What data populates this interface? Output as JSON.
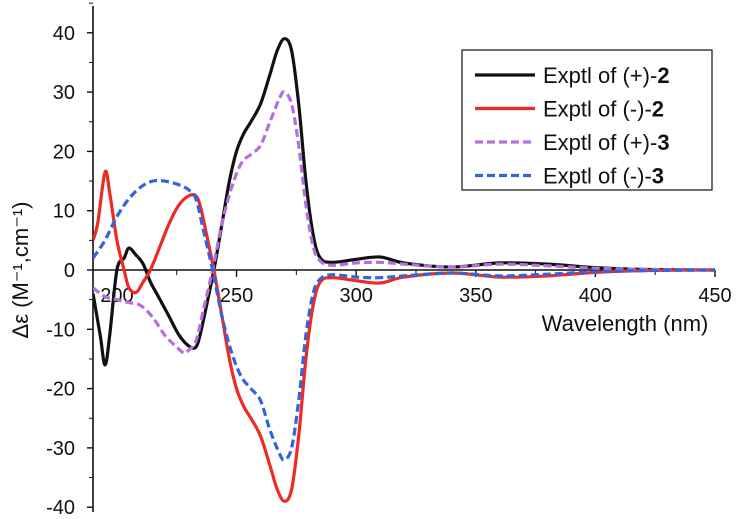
{
  "chart_data": {
    "type": "line",
    "xlabel": "Wavelength (nm)",
    "ylabel": "Δε (M⁻¹,cm⁻¹)",
    "xlim": [
      190,
      450
    ],
    "ylim": [
      -40,
      45
    ],
    "xticks": [
      200,
      250,
      300,
      350,
      400,
      450
    ],
    "xtick_labels": [
      "200",
      "250",
      "300",
      "350",
      "400",
      "450"
    ],
    "yticks": [
      -40,
      -30,
      -20,
      -10,
      0,
      10,
      20,
      30,
      40
    ],
    "ytick_labels": [
      "-40",
      "-30",
      "-20",
      "-10",
      "0",
      "10",
      "20",
      "30",
      "40"
    ],
    "grid": false,
    "legend_position": "top-right",
    "series": [
      {
        "name": "Exptl of (+)-2",
        "label_prefix": "Exptl of (+)-",
        "label_num": "2",
        "color": "#111111",
        "dash": "solid",
        "points": [
          [
            190,
            -4
          ],
          [
            193,
            -11
          ],
          [
            195,
            -16
          ],
          [
            197,
            -11
          ],
          [
            200,
            0
          ],
          [
            203,
            2
          ],
          [
            205,
            3.7
          ],
          [
            208,
            2.5
          ],
          [
            211,
            1
          ],
          [
            214,
            -2
          ],
          [
            218,
            -5
          ],
          [
            222,
            -8
          ],
          [
            226,
            -11
          ],
          [
            230,
            -12.8
          ],
          [
            233,
            -13
          ],
          [
            235,
            -10.5
          ],
          [
            238,
            -5
          ],
          [
            241,
            1
          ],
          [
            244,
            8
          ],
          [
            247,
            15
          ],
          [
            250,
            20
          ],
          [
            253,
            23
          ],
          [
            256,
            25
          ],
          [
            260,
            28
          ],
          [
            264,
            33
          ],
          [
            267,
            37
          ],
          [
            270,
            39
          ],
          [
            273,
            37
          ],
          [
            276,
            28
          ],
          [
            279,
            15
          ],
          [
            282,
            6
          ],
          [
            285,
            2
          ],
          [
            290,
            1.3
          ],
          [
            300,
            1.8
          ],
          [
            310,
            2.2
          ],
          [
            320,
            1.2
          ],
          [
            340,
            0.5
          ],
          [
            360,
            1.2
          ],
          [
            380,
            1
          ],
          [
            400,
            0.4
          ],
          [
            420,
            0.1
          ],
          [
            450,
            0
          ]
        ]
      },
      {
        "name": "Exptl of (-)-2",
        "label_prefix": "Exptl of (-)-",
        "label_num": "2",
        "color": "#ee2a24",
        "dash": "solid",
        "points": [
          [
            190,
            5
          ],
          [
            192,
            8
          ],
          [
            195,
            16.5
          ],
          [
            197,
            13
          ],
          [
            200,
            5
          ],
          [
            203,
            0
          ],
          [
            205,
            -3
          ],
          [
            208,
            -3.8
          ],
          [
            211,
            -2
          ],
          [
            214,
            0
          ],
          [
            218,
            4
          ],
          [
            222,
            8
          ],
          [
            226,
            11
          ],
          [
            230,
            12.5
          ],
          [
            233,
            12.5
          ],
          [
            235,
            10.5
          ],
          [
            238,
            5
          ],
          [
            241,
            -1
          ],
          [
            244,
            -8
          ],
          [
            247,
            -15
          ],
          [
            250,
            -20
          ],
          [
            253,
            -23
          ],
          [
            256,
            -25
          ],
          [
            260,
            -28
          ],
          [
            264,
            -33
          ],
          [
            267,
            -37
          ],
          [
            270,
            -39
          ],
          [
            273,
            -37
          ],
          [
            276,
            -28
          ],
          [
            279,
            -15
          ],
          [
            282,
            -6
          ],
          [
            285,
            -2
          ],
          [
            290,
            -1.3
          ],
          [
            300,
            -1.8
          ],
          [
            310,
            -2.2
          ],
          [
            320,
            -1.2
          ],
          [
            340,
            -0.5
          ],
          [
            360,
            -1.2
          ],
          [
            380,
            -1
          ],
          [
            400,
            -0.4
          ],
          [
            420,
            -0.1
          ],
          [
            450,
            0
          ]
        ]
      },
      {
        "name": "Exptl of (+)-3",
        "label_prefix": "Exptl of (+)-",
        "label_num": "3",
        "color": "#b46fdd",
        "dash": "dashed",
        "points": [
          [
            190,
            -3
          ],
          [
            195,
            -4.5
          ],
          [
            200,
            -5
          ],
          [
            205,
            -5.5
          ],
          [
            210,
            -6
          ],
          [
            215,
            -8
          ],
          [
            220,
            -11
          ],
          [
            225,
            -13
          ],
          [
            228,
            -14
          ],
          [
            230,
            -13.5
          ],
          [
            233,
            -12
          ],
          [
            236,
            -7
          ],
          [
            240,
            0
          ],
          [
            244,
            8
          ],
          [
            248,
            14
          ],
          [
            252,
            18
          ],
          [
            256,
            19.5
          ],
          [
            260,
            21
          ],
          [
            264,
            25
          ],
          [
            268,
            29
          ],
          [
            270,
            30
          ],
          [
            273,
            28
          ],
          [
            276,
            21
          ],
          [
            279,
            11
          ],
          [
            282,
            4
          ],
          [
            285,
            1.5
          ],
          [
            290,
            0.8
          ],
          [
            300,
            1.2
          ],
          [
            310,
            1.3
          ],
          [
            320,
            1
          ],
          [
            340,
            0.5
          ],
          [
            360,
            1
          ],
          [
            380,
            0.7
          ],
          [
            400,
            0.3
          ],
          [
            420,
            0.1
          ],
          [
            450,
            0
          ]
        ]
      },
      {
        "name": "Exptl of (-)-3",
        "label_prefix": "Exptl of (-)-",
        "label_num": "3",
        "color": "#3363dd",
        "dash": "dashed",
        "points": [
          [
            190,
            2
          ],
          [
            195,
            5
          ],
          [
            200,
            9
          ],
          [
            205,
            12
          ],
          [
            210,
            14
          ],
          [
            215,
            15
          ],
          [
            220,
            15
          ],
          [
            225,
            14.5
          ],
          [
            228,
            14
          ],
          [
            230,
            13.5
          ],
          [
            233,
            12
          ],
          [
            236,
            7
          ],
          [
            240,
            0
          ],
          [
            244,
            -8
          ],
          [
            248,
            -14
          ],
          [
            252,
            -18
          ],
          [
            256,
            -20
          ],
          [
            260,
            -22
          ],
          [
            264,
            -27
          ],
          [
            268,
            -31
          ],
          [
            270,
            -32
          ],
          [
            273,
            -30
          ],
          [
            276,
            -22
          ],
          [
            279,
            -11
          ],
          [
            282,
            -4
          ],
          [
            285,
            -1.5
          ],
          [
            290,
            -0.8
          ],
          [
            300,
            -1.2
          ],
          [
            310,
            -1.3
          ],
          [
            320,
            -1
          ],
          [
            340,
            -0.5
          ],
          [
            360,
            -1
          ],
          [
            380,
            -0.7
          ],
          [
            400,
            -0.3
          ],
          [
            420,
            -0.1
          ],
          [
            450,
            0
          ]
        ]
      }
    ]
  }
}
